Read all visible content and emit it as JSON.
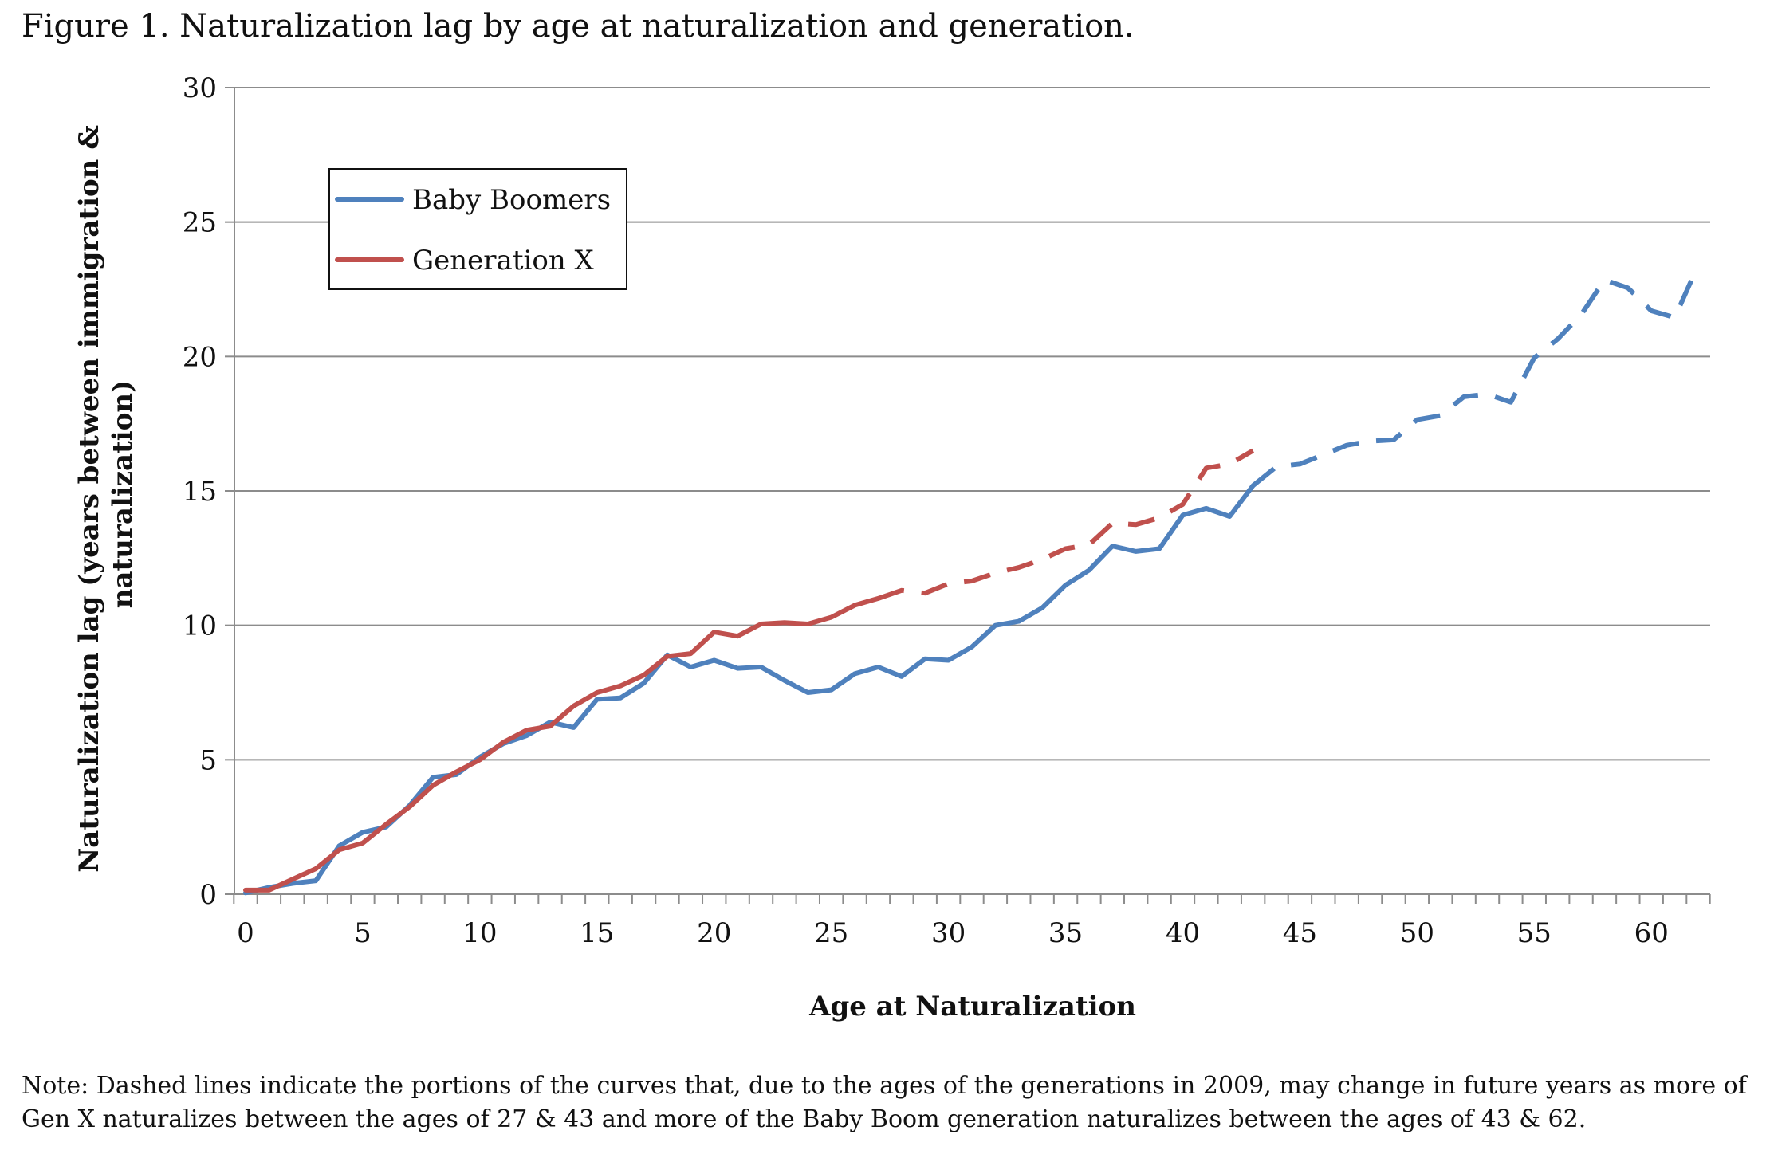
{
  "figure": {
    "title": "Figure 1. Naturalization lag by age at naturalization and generation.",
    "note": "Note:  Dashed lines indicate the portions of the curves that, due to the ages of the generations in 2009, may change in future years as more of Gen X naturalizes between the ages of 27 & 43 and more of the Baby Boom generation naturalizes between the ages of 43 & 62."
  },
  "chart_data": {
    "type": "line",
    "title": "",
    "xlabel": "Age at Naturalization",
    "ylabel": "Naturalization lag (years between immigration & naturalization)",
    "ylabel_lines": [
      "Naturalization lag (years between immigration &",
      "naturalization)"
    ],
    "xlim": [
      0,
      62
    ],
    "ylim": [
      0,
      30
    ],
    "x_ticks": [
      0,
      5,
      10,
      15,
      20,
      25,
      30,
      35,
      40,
      45,
      50,
      55,
      60
    ],
    "y_ticks": [
      0,
      5,
      10,
      15,
      20,
      25,
      30
    ],
    "grid": "horizontal",
    "legend_position": "upper-left",
    "series": [
      {
        "name": "Baby Boomers",
        "color": "#4f81bd",
        "dashed_from_age": 43,
        "x": [
          0,
          1,
          2,
          3,
          4,
          5,
          6,
          7,
          8,
          9,
          10,
          11,
          12,
          13,
          14,
          15,
          16,
          17,
          18,
          19,
          20,
          21,
          22,
          23,
          24,
          25,
          26,
          27,
          28,
          29,
          30,
          31,
          32,
          33,
          34,
          35,
          36,
          37,
          38,
          39,
          40,
          41,
          42,
          43,
          44,
          45,
          46,
          47,
          48,
          49,
          50,
          51,
          52,
          53,
          54,
          55,
          56,
          57,
          58,
          59,
          60,
          61,
          62
        ],
        "values": [
          0.05,
          0.25,
          0.4,
          0.5,
          1.8,
          2.3,
          2.5,
          3.3,
          4.35,
          4.45,
          5.1,
          5.6,
          5.9,
          6.4,
          6.2,
          7.25,
          7.3,
          7.85,
          8.9,
          8.45,
          8.7,
          8.4,
          8.45,
          7.95,
          7.5,
          7.6,
          8.2,
          8.45,
          8.1,
          8.75,
          8.7,
          9.2,
          10.0,
          10.15,
          10.65,
          11.5,
          12.05,
          12.95,
          12.75,
          12.85,
          14.1,
          14.35,
          14.05,
          15.2,
          15.9,
          16.0,
          16.35,
          16.7,
          16.85,
          16.9,
          17.65,
          17.8,
          18.5,
          18.6,
          18.3,
          19.95,
          20.65,
          21.55,
          22.85,
          22.55,
          21.7,
          21.45,
          23.4
        ]
      },
      {
        "name": "Generation X",
        "color": "#c0504d",
        "dashed_from_age": 27,
        "x": [
          0,
          1,
          2,
          3,
          4,
          5,
          6,
          7,
          8,
          9,
          10,
          11,
          12,
          13,
          14,
          15,
          16,
          17,
          18,
          19,
          20,
          21,
          22,
          23,
          24,
          25,
          26,
          27,
          28,
          29,
          30,
          31,
          32,
          33,
          34,
          35,
          36,
          37,
          38,
          39,
          40,
          41,
          42,
          43
        ],
        "values": [
          0.15,
          0.15,
          0.55,
          0.95,
          1.65,
          1.9,
          2.6,
          3.25,
          4.05,
          4.55,
          5.0,
          5.65,
          6.1,
          6.25,
          7.0,
          7.5,
          7.75,
          8.15,
          8.85,
          8.95,
          9.75,
          9.6,
          10.05,
          10.1,
          10.05,
          10.3,
          10.75,
          11.0,
          11.3,
          11.2,
          11.55,
          11.65,
          11.95,
          12.15,
          12.45,
          12.85,
          13.0,
          13.8,
          13.75,
          14.0,
          14.5,
          15.85,
          16.0,
          16.5
        ]
      }
    ]
  }
}
